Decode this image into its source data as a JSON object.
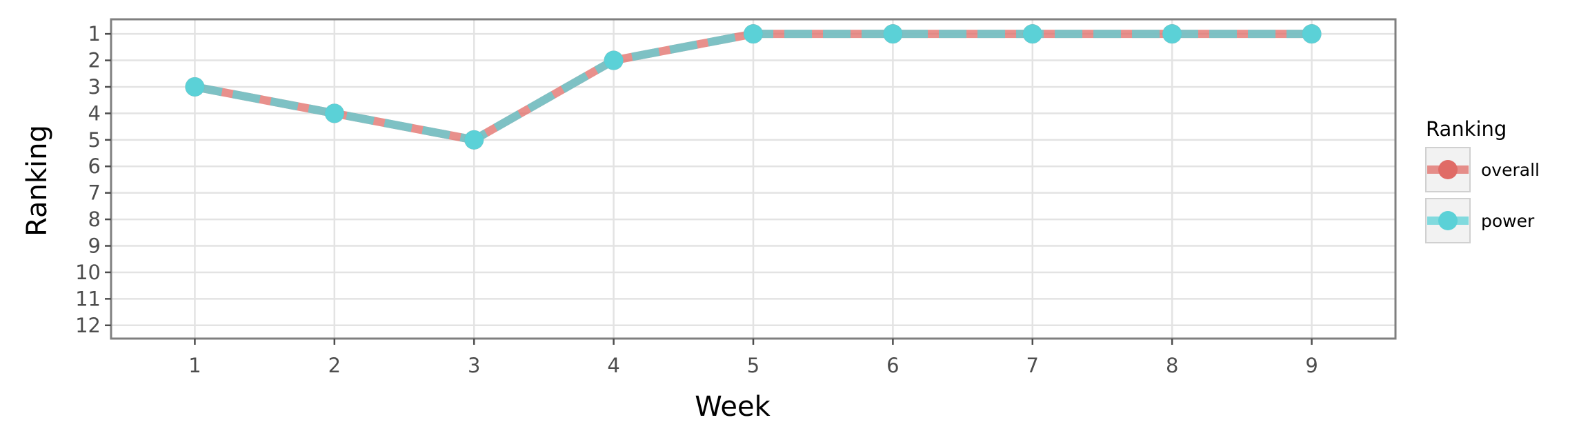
{
  "chart_data": {
    "type": "line",
    "xlabel": "Week",
    "ylabel": "Ranking",
    "x": [
      1,
      2,
      3,
      4,
      5,
      6,
      7,
      8,
      9
    ],
    "xlim": [
      0.4,
      9.6
    ],
    "ylim": [
      12.5,
      0.45
    ],
    "y_reversed": true,
    "x_ticks": [
      "1",
      "2",
      "3",
      "4",
      "5",
      "6",
      "7",
      "8",
      "9"
    ],
    "y_ticks": [
      "1",
      "2",
      "3",
      "4",
      "5",
      "6",
      "7",
      "8",
      "9",
      "10",
      "11",
      "12"
    ],
    "grid": true,
    "legend_title": "Ranking",
    "legend_position": "right",
    "series": [
      {
        "name": "overall",
        "color": "#e06b66",
        "values": [
          3,
          4,
          5,
          2,
          1,
          1,
          1,
          1,
          1
        ]
      },
      {
        "name": "power",
        "color": "#5bd1d7",
        "values": [
          3,
          4,
          5,
          2,
          1,
          1,
          1,
          1,
          1
        ]
      }
    ]
  }
}
